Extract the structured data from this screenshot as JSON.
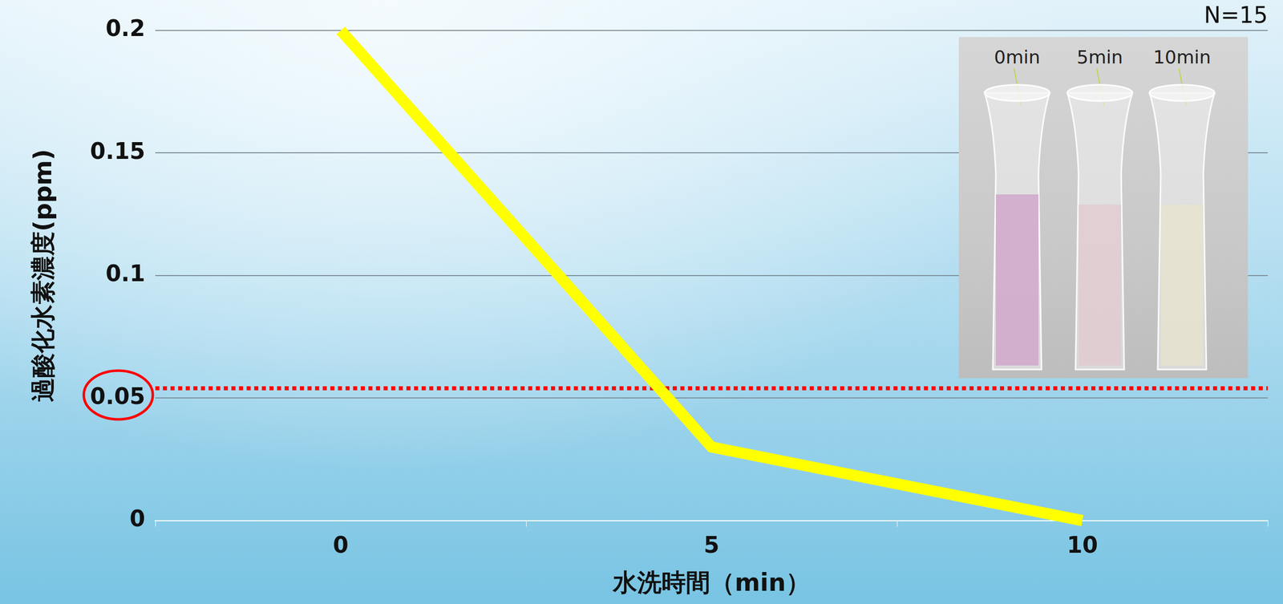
{
  "chart_data": {
    "type": "line",
    "categories": [
      "0",
      "5",
      "10"
    ],
    "values": [
      0.2,
      0.03,
      0
    ],
    "color": "#ffff00",
    "x_label": "水洗時間（min）",
    "y_label": "過酸化水素濃度(ppm)",
    "ylim": [
      0,
      0.2
    ],
    "yticks": [
      0,
      0.05,
      0.1,
      0.15,
      0.2
    ],
    "grid": true,
    "reference_line": {
      "value": 0.054,
      "color": "#ff0000",
      "line_style": "dotted"
    },
    "note": "N=15",
    "inset_labels": [
      "0min",
      "5min",
      "10min"
    ]
  }
}
